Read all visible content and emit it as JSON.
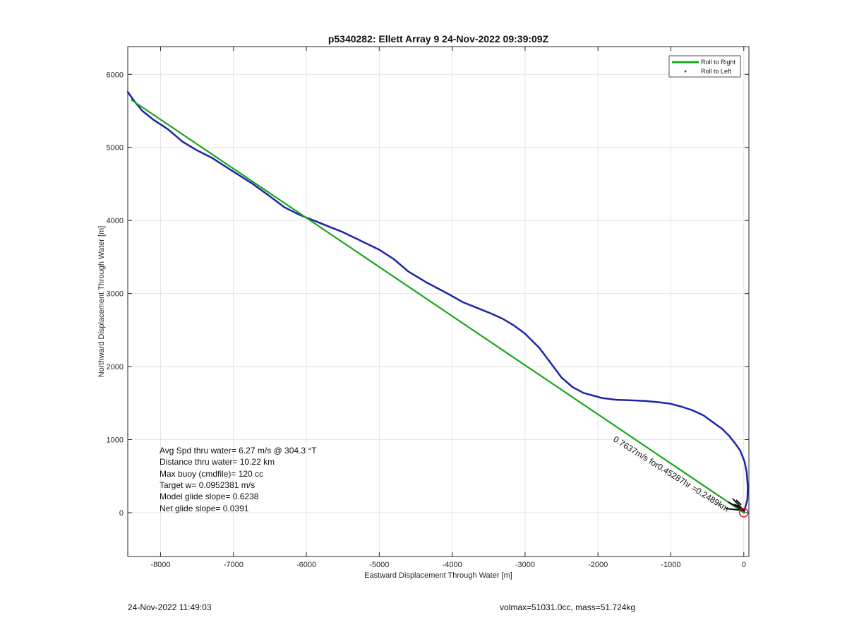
{
  "footer": {
    "timestamp": "24-Nov-2022 11:49:03",
    "vol_mass": "volmax=51031.0cc, mass=51.724kg"
  },
  "chart_data": {
    "type": "line",
    "title": "p5340282: Ellett Array 9 24-Nov-2022 09:39:09Z",
    "xlabel": "Eastward Displacement Through Water [m]",
    "ylabel": "Northward Displacement Through Water [m]",
    "xlim": [
      -8450,
      70
    ],
    "ylim": [
      -600,
      6380
    ],
    "xticks": [
      -8000,
      -7000,
      -6000,
      -5000,
      -4000,
      -3000,
      -2000,
      -1000,
      0
    ],
    "yticks": [
      0,
      1000,
      2000,
      3000,
      4000,
      5000,
      6000
    ],
    "grid": true,
    "legend_position": "top-right",
    "legend": [
      {
        "label": "Roll to Right",
        "color": "#1aa51a",
        "style": "line"
      },
      {
        "label": "Roll to Left",
        "color": "#e31a1a",
        "style": "dot"
      }
    ],
    "series": [
      {
        "color": "#1c25a8",
        "x": [
          0,
          50,
          55,
          40,
          10,
          -50,
          -120,
          -200,
          -300,
          -400,
          -550,
          -700,
          -850,
          -1000,
          -1150,
          -1350,
          -1600,
          -1750,
          -1950,
          -2200,
          -2350,
          -2500,
          -2650,
          -2800,
          -3000,
          -3150,
          -3300,
          -3450,
          -3650,
          -3850,
          -4100,
          -4350,
          -4600,
          -4800,
          -5000,
          -5250,
          -5500,
          -5800,
          -6100,
          -6300,
          -6500,
          -6750,
          -7050,
          -7300,
          -7500,
          -7700,
          -7900,
          -8100,
          -8250,
          -8350,
          -8450
        ],
        "y": [
          0,
          180,
          350,
          550,
          700,
          850,
          950,
          1050,
          1150,
          1220,
          1330,
          1400,
          1450,
          1490,
          1510,
          1530,
          1540,
          1545,
          1570,
          1640,
          1720,
          1850,
          2050,
          2250,
          2450,
          2560,
          2650,
          2720,
          2800,
          2880,
          3020,
          3150,
          3300,
          3470,
          3600,
          3720,
          3840,
          3960,
          4080,
          4180,
          4330,
          4510,
          4700,
          4860,
          4960,
          5080,
          5250,
          5380,
          5500,
          5620,
          5760
        ]
      },
      {
        "name": "Roll to Right",
        "color": "#1aa51a",
        "x": [
          0,
          -8400
        ],
        "y": [
          0,
          5650
        ]
      }
    ],
    "markers": [
      {
        "type": "circle",
        "x": 0,
        "y": 0,
        "color": "#e31a1a"
      }
    ],
    "annotations": {
      "stats": [
        "Avg Spd thru water=  6.27 m/s @ 304.3 °T",
        "Distance thru water= 10.22 km",
        "Max buoy (cmdfile)= 120 cc",
        "Target w= 0.0952381 m/s",
        "Model glide slope= 0.6238",
        "Net glide slope= 0.0391"
      ],
      "vector_label": "0.7637m/s for0.45287hr =0.2489km"
    }
  }
}
